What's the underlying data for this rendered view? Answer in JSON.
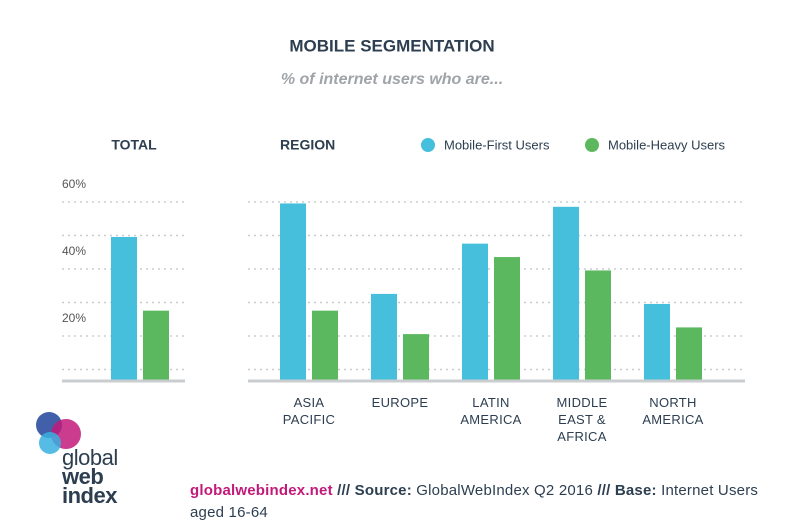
{
  "title": "MOBILE SEGMENTATION",
  "subtitle": "% of internet users who are...",
  "chart_data": [
    {
      "type": "bar",
      "title": "TOTAL",
      "categories": [
        null
      ],
      "series": [
        {
          "color": "#45bfdc",
          "values": [
            43
          ]
        },
        {
          "color": "#5cb85f",
          "values": [
            21
          ]
        }
      ],
      "ylim": [
        0,
        60
      ],
      "yticks": [
        {
          "value": 20,
          "label": "20%"
        },
        {
          "value": 40,
          "label": "40%"
        },
        {
          "value": 60,
          "label": "60%"
        }
      ],
      "minor_grid": [
        10,
        30,
        50
      ]
    },
    {
      "type": "bar",
      "title": "REGION",
      "categories": [
        "ASIA PACIFIC",
        "EUROPE",
        "LATIN AMERICA",
        "MIDDLE EAST & AFRICA",
        "NORTH AMERICA"
      ],
      "series": [
        {
          "name": "Mobile-First Users",
          "color": "#45bfdc",
          "values": [
            53,
            26,
            41,
            52,
            23
          ]
        },
        {
          "name": "Mobile-Heavy Users",
          "color": "#5cb85f",
          "values": [
            21,
            14,
            37,
            33,
            16
          ]
        }
      ],
      "ylim": [
        0,
        60
      ],
      "grid": [
        10,
        20,
        30,
        40,
        50,
        60
      ]
    }
  ],
  "footer": {
    "site": "globalwebindex.net",
    "source_label": "/// Source:",
    "source": "GlobalWebIndex Q2 2016",
    "base_label": "/// Base:",
    "base": "Internet Users aged 16-64"
  },
  "logo": {
    "line1": "global",
    "line2": "web",
    "line3": "index"
  }
}
